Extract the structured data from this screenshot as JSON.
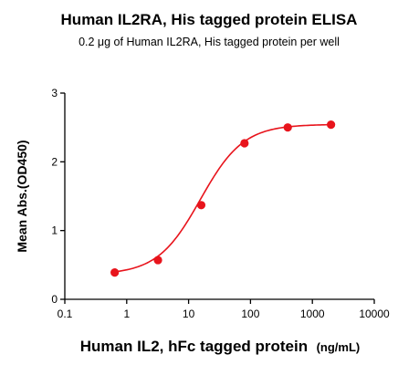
{
  "chart_data": {
    "type": "scatter",
    "title": "Human IL2RA, His tagged protein ELISA",
    "subtitle": "0.2 μg of Human IL2RA, His tagged protein per well",
    "xlabel": "Human IL2, hFc tagged protein",
    "xlabel_unit": "(ng/mL)",
    "ylabel": "Mean Abs.(OD450)",
    "xscale": "log",
    "xlim": [
      0.1,
      10000
    ],
    "ylim": [
      0,
      3
    ],
    "x_ticks": [
      0.1,
      1,
      10,
      100,
      1000,
      10000
    ],
    "x_tick_labels": [
      "0.1",
      "1",
      "10",
      "100",
      "1000",
      "10000"
    ],
    "y_ticks": [
      0,
      1,
      2,
      3
    ],
    "y_tick_labels": [
      "0",
      "1",
      "2",
      "3"
    ],
    "grid": false,
    "series": [
      {
        "color": "#e8141c",
        "x": [
          0.64,
          3.2,
          16,
          80,
          400,
          2000
        ],
        "y": [
          0.39,
          0.57,
          1.37,
          2.27,
          2.5,
          2.54
        ],
        "fit": "sigmoidal 4PL curve"
      }
    ]
  }
}
